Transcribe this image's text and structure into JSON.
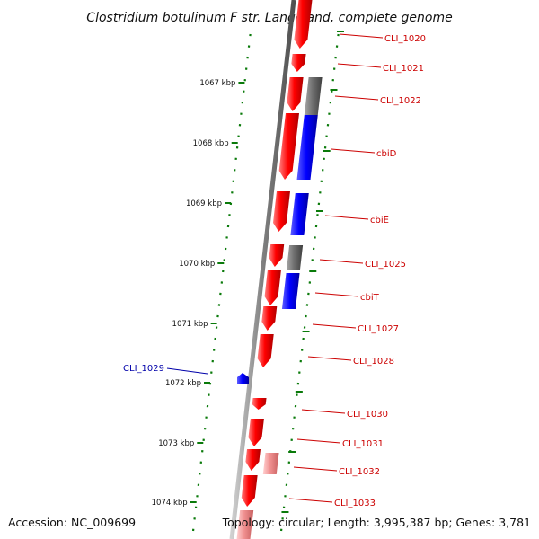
{
  "title": "Clostridium botulinum F str. Langeland, complete genome",
  "footer": {
    "accession": "Accession: NC_009699",
    "topology": "Topology: circular; Length: 3,995,387 bp; Genes: 3,781"
  },
  "colors": {
    "forward": "#ff0000",
    "reverse_blue": "#0000ff",
    "reverse_gray": "#707070",
    "pale": "#f08080",
    "tick": "#0a7a0a",
    "label_red": "#cc0000",
    "label_blue": "#0000aa",
    "backbone": "#8a8a8a"
  },
  "kbp_ticks": [
    "1067 kbp",
    "1068 kbp",
    "1069 kbp",
    "1070 kbp",
    "1071 kbp",
    "1072 kbp",
    "1073 kbp",
    "1074 kbp"
  ],
  "genes": [
    {
      "label": "CLI_1020",
      "strand": "forward",
      "color": "red"
    },
    {
      "label": "CLI_1021",
      "strand": "forward",
      "color": "red"
    },
    {
      "label": "CLI_1022",
      "strand": "reverse",
      "color": "gray"
    },
    {
      "label": "cbiD",
      "strand": "reverse",
      "color": "blue"
    },
    {
      "label": "cbiE",
      "strand": "reverse",
      "color": "blue"
    },
    {
      "label": "CLI_1025",
      "strand": "reverse",
      "color": "gray"
    },
    {
      "label": "cbiT",
      "strand": "reverse",
      "color": "blue"
    },
    {
      "label": "CLI_1027",
      "strand": "forward",
      "color": "red"
    },
    {
      "label": "CLI_1028",
      "strand": "forward",
      "color": "red"
    },
    {
      "label": "CLI_1029",
      "strand": "inner",
      "color": "blue"
    },
    {
      "label": "CLI_1030",
      "strand": "forward",
      "color": "red"
    },
    {
      "label": "CLI_1031",
      "strand": "forward",
      "color": "red"
    },
    {
      "label": "CLI_1032",
      "strand": "reverse",
      "color": "pale"
    },
    {
      "label": "CLI_1033",
      "strand": "forward",
      "color": "red"
    }
  ]
}
